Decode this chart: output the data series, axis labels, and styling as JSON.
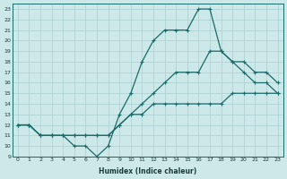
{
  "xlabel": "Humidex (Indice chaleur)",
  "xlim": [
    -0.5,
    23.5
  ],
  "ylim": [
    9,
    23.5
  ],
  "yticks": [
    9,
    10,
    11,
    12,
    13,
    14,
    15,
    16,
    17,
    18,
    19,
    20,
    21,
    22,
    23
  ],
  "xticks": [
    0,
    1,
    2,
    3,
    4,
    5,
    6,
    7,
    8,
    9,
    10,
    11,
    12,
    13,
    14,
    15,
    16,
    17,
    18,
    19,
    20,
    21,
    22,
    23
  ],
  "bg_color": "#cce8e8",
  "grid_color": "#aacfcf",
  "line_color": "#1a6b6b",
  "line_top": [
    12,
    12,
    11,
    11,
    11,
    10,
    10,
    9,
    10,
    13,
    15,
    18,
    20,
    21,
    21,
    21,
    23,
    23,
    19,
    18,
    17,
    16,
    16,
    15
  ],
  "line_mid": [
    12,
    12,
    11,
    11,
    11,
    11,
    11,
    11,
    11,
    12,
    13,
    14,
    15,
    16,
    17,
    17,
    17,
    19,
    19,
    18,
    18,
    17,
    17,
    16
  ],
  "line_bot": [
    12,
    12,
    11,
    11,
    11,
    11,
    11,
    11,
    11,
    12,
    13,
    13,
    14,
    14,
    14,
    14,
    14,
    14,
    14,
    15,
    15,
    15,
    15,
    15
  ]
}
